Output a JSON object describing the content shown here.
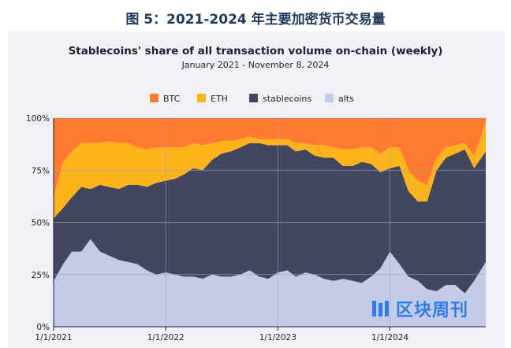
{
  "figure_caption": "图 5：2021-2024 年主要加密货币交易量",
  "watermark": {
    "icon": "logo-bars-icon",
    "text": "区块周刊"
  },
  "colors": {
    "BTC": "#ff7a2e",
    "ETH": "#ffb31a",
    "stablecoins": "#42465e",
    "alts": "#c4cbe8",
    "panel": "#f0f1f5"
  },
  "chart_data": {
    "type": "area",
    "stacked": true,
    "title": "Stablecoins' share of all transaction volume on-chain (weekly)",
    "subtitle": "January 2021 - November 8, 2024",
    "legend": [
      "BTC",
      "ETH",
      "stablecoins",
      "alts"
    ],
    "legend_position": "top",
    "y_ticks": [
      "0%",
      "25%",
      "50%",
      "75%",
      "100%"
    ],
    "x_ticks": [
      "1/1/2021",
      "1/1/2022",
      "1/1/2023",
      "1/1/2024"
    ],
    "ylim": [
      0,
      100
    ],
    "xlim": [
      "2021-01-01",
      "2024-11-08"
    ],
    "grid": true,
    "x": [
      "2021-01-01",
      "2021-02-01",
      "2021-03-01",
      "2021-04-01",
      "2021-05-01",
      "2021-06-01",
      "2021-07-01",
      "2021-08-01",
      "2021-09-01",
      "2021-10-01",
      "2021-11-01",
      "2021-12-01",
      "2022-01-01",
      "2022-02-01",
      "2022-03-01",
      "2022-04-01",
      "2022-05-01",
      "2022-06-01",
      "2022-07-01",
      "2022-08-01",
      "2022-09-01",
      "2022-10-01",
      "2022-11-01",
      "2022-12-01",
      "2023-01-01",
      "2023-02-01",
      "2023-03-01",
      "2023-04-01",
      "2023-05-01",
      "2023-06-01",
      "2023-07-01",
      "2023-08-01",
      "2023-09-01",
      "2023-10-01",
      "2023-11-01",
      "2023-12-01",
      "2024-01-01",
      "2024-02-01",
      "2024-03-01",
      "2024-04-01",
      "2024-05-01",
      "2024-06-01",
      "2024-07-01",
      "2024-08-01",
      "2024-09-01",
      "2024-10-01",
      "2024-11-08"
    ],
    "series": [
      {
        "name": "alts",
        "values": [
          22,
          30,
          36,
          36,
          42,
          36,
          34,
          32,
          31,
          30,
          27,
          25,
          26,
          25,
          24,
          24,
          23,
          25,
          24,
          24,
          25,
          27,
          24,
          23,
          26,
          27,
          24,
          26,
          25,
          23,
          22,
          23,
          22,
          21,
          24,
          28,
          36,
          30,
          24,
          22,
          18,
          17,
          20,
          20,
          16,
          22,
          31
        ]
      },
      {
        "name": "stablecoins",
        "values": [
          30,
          27,
          26,
          31,
          24,
          32,
          33,
          34,
          37,
          38,
          40,
          44,
          44,
          46,
          49,
          52,
          52,
          55,
          59,
          60,
          61,
          61,
          64,
          64,
          61,
          60,
          60,
          59,
          57,
          58,
          59,
          54,
          55,
          58,
          54,
          46,
          40,
          47,
          41,
          38,
          42,
          58,
          61,
          63,
          69,
          54,
          53
        ]
      },
      {
        "name": "ETH",
        "values": [
          10,
          22,
          22,
          21,
          22,
          20,
          22,
          22,
          20,
          18,
          18,
          17,
          16,
          15,
          13,
          12,
          12,
          8,
          6,
          5,
          4,
          3,
          2,
          3,
          3,
          3,
          4,
          3,
          5,
          6,
          5,
          8,
          8,
          7,
          8,
          9,
          10,
          9,
          10,
          10,
          8,
          6,
          5,
          4,
          3,
          6,
          14
        ]
      },
      {
        "name": "BTC",
        "values": [
          38,
          21,
          16,
          12,
          12,
          12,
          11,
          12,
          12,
          14,
          15,
          14,
          14,
          14,
          14,
          12,
          13,
          12,
          11,
          11,
          10,
          9,
          10,
          10,
          10,
          10,
          12,
          12,
          13,
          13,
          14,
          15,
          15,
          14,
          14,
          17,
          14,
          14,
          25,
          30,
          32,
          19,
          14,
          13,
          12,
          18,
          2
        ]
      }
    ]
  }
}
